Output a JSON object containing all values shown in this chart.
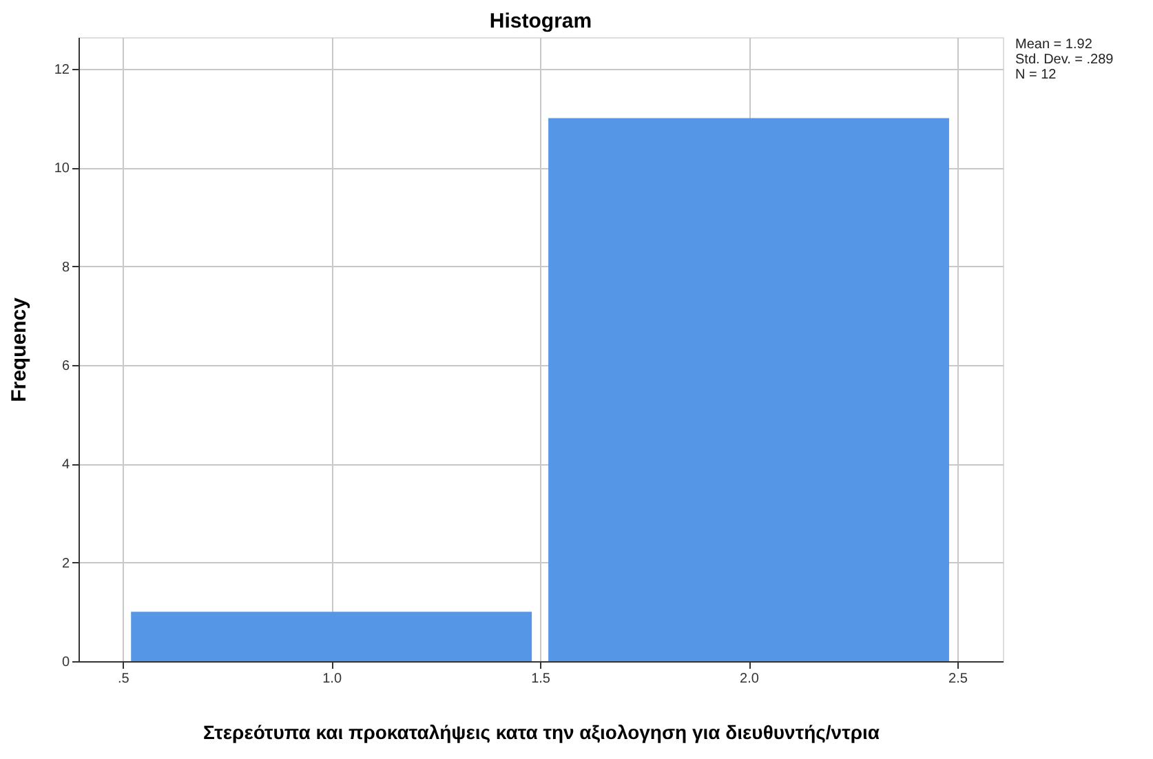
{
  "chart_data": {
    "type": "histogram",
    "title": "Histogram",
    "xlabel": "Στερεότυπα και προκαταλήψεις κατα την αξιολογηση για διευθυντής/ντρια",
    "ylabel": "Frequency",
    "bins": [
      0.5,
      1.5,
      2.5
    ],
    "values": [
      1,
      11
    ],
    "color": "#5596e6",
    "xlim": [
      0.394,
      2.609
    ],
    "xticks": [
      {
        "value": 0.5,
        "label": ".5"
      },
      {
        "value": 1,
        "label": "1.0"
      },
      {
        "value": 1.5,
        "label": "1.5"
      },
      {
        "value": 2,
        "label": "2.0"
      },
      {
        "value": 2.5,
        "label": "2.5"
      }
    ],
    "ylim": [
      0,
      12.64
    ],
    "yticks": [
      0,
      2,
      4,
      6,
      8,
      10,
      12
    ],
    "grid": true,
    "annotations": [
      "Mean = 1.92",
      "Std. Dev. = .289",
      "N = 12"
    ]
  }
}
